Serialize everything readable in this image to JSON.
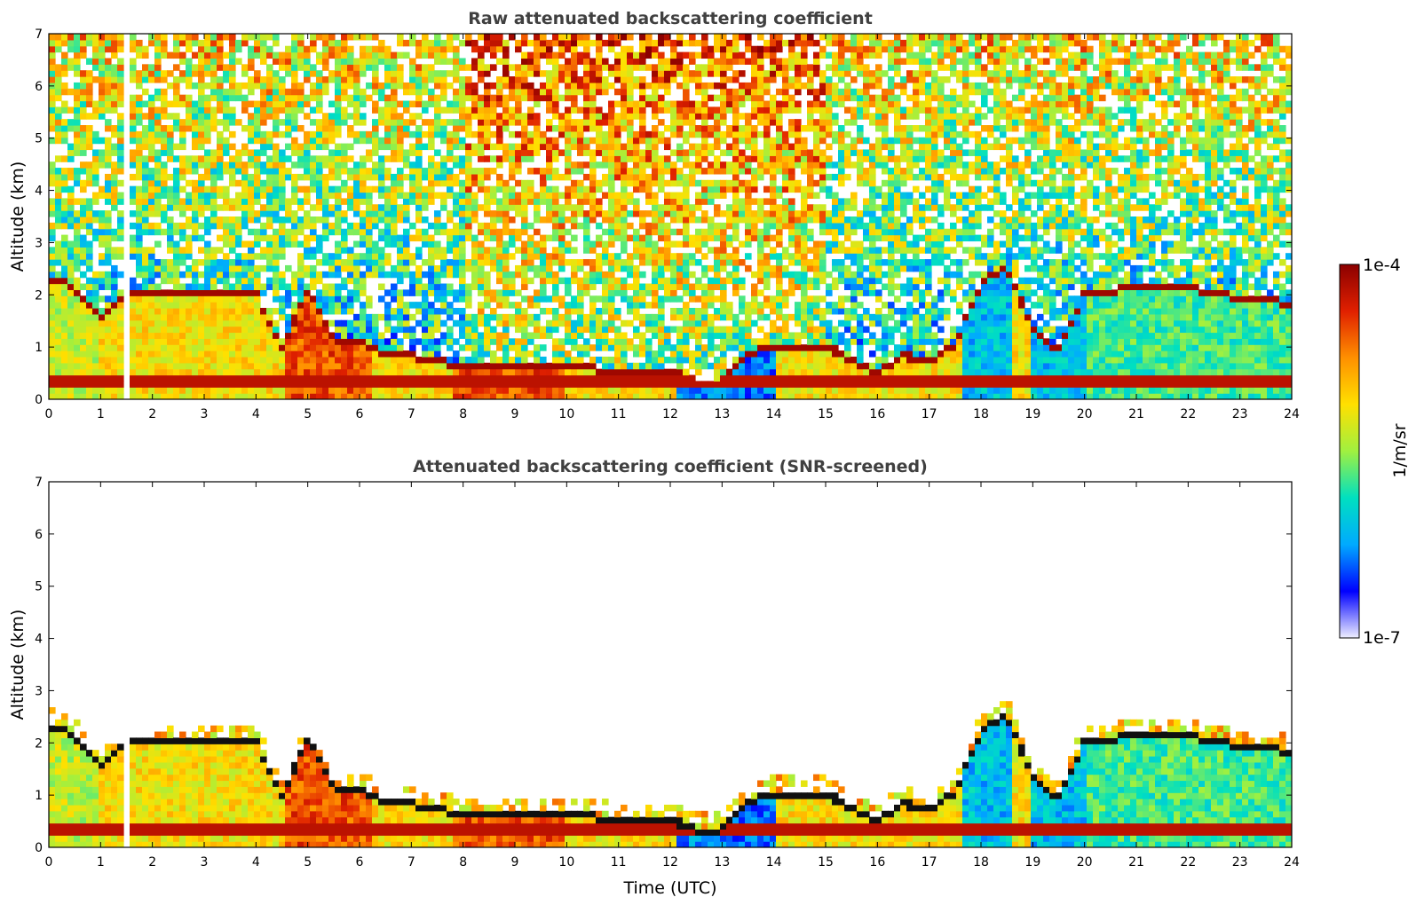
{
  "chart_data": [
    {
      "type": "heatmap",
      "title": "Raw attenuated backscattering coefficient",
      "xlabel": "",
      "ylabel": "Altitude (km)",
      "xlim": [
        0,
        24
      ],
      "ylim": [
        0,
        7
      ],
      "xticks": [
        "0",
        "1",
        "2",
        "3",
        "4",
        "5",
        "6",
        "7",
        "8",
        "9",
        "10",
        "11",
        "12",
        "13",
        "14",
        "15",
        "16",
        "17",
        "18",
        "19",
        "20",
        "21",
        "22",
        "23",
        "24"
      ],
      "yticks": [
        "0",
        "1",
        "2",
        "3",
        "4",
        "5",
        "6",
        "7"
      ],
      "screened": false
    },
    {
      "type": "heatmap",
      "title": "Attenuated backscattering coefficient (SNR-screened)",
      "xlabel": "Time (UTC)",
      "ylabel": "Altitude (km)",
      "xlim": [
        0,
        24
      ],
      "ylim": [
        0,
        7
      ],
      "xticks": [
        "0",
        "1",
        "2",
        "3",
        "4",
        "5",
        "6",
        "7",
        "8",
        "9",
        "10",
        "11",
        "12",
        "13",
        "14",
        "15",
        "16",
        "17",
        "18",
        "19",
        "20",
        "21",
        "22",
        "23",
        "24"
      ],
      "yticks": [
        "0",
        "1",
        "2",
        "3",
        "4",
        "5",
        "6",
        "7"
      ],
      "screened": true
    }
  ],
  "layer_profile": {
    "time_utc": [
      0,
      0.5,
      1.0,
      1.5,
      2.0,
      3.0,
      4.0,
      4.5,
      5.0,
      5.5,
      6.0,
      6.5,
      7.0,
      8.0,
      9.0,
      10.0,
      11.0,
      12.0,
      12.5,
      13.0,
      13.5,
      14.0,
      15.0,
      15.5,
      16.0,
      16.5,
      17.0,
      17.5,
      18.0,
      18.5,
      19.0,
      19.5,
      20.0,
      21.0,
      22.0,
      23.0,
      24.0
    ],
    "top_km": [
      2.4,
      2.2,
      1.6,
      2.1,
      2.1,
      2.1,
      2.1,
      1.0,
      2.2,
      1.2,
      1.2,
      0.9,
      0.9,
      0.7,
      0.7,
      0.7,
      0.6,
      0.6,
      0.4,
      0.4,
      0.9,
      1.1,
      1.1,
      0.8,
      0.6,
      0.9,
      0.8,
      1.1,
      2.3,
      2.6,
      1.4,
      1.0,
      2.1,
      2.2,
      2.2,
      2.0,
      1.9
    ],
    "bottom_layer_km": 0.35
  },
  "colorbar": {
    "max_label": "1e-4",
    "min_label": "1e-7",
    "unit_label": "1/m/sr",
    "colors": [
      "#eeeeff",
      "#0000ff",
      "#00aaff",
      "#00e0c0",
      "#a0f040",
      "#ffe000",
      "#ff9000",
      "#e02000",
      "#8b0000"
    ]
  }
}
